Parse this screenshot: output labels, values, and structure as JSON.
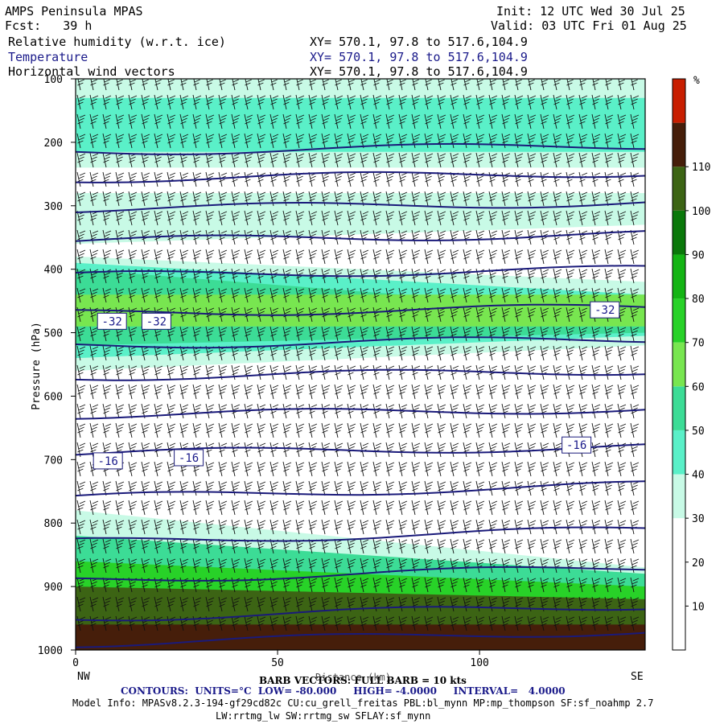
{
  "header": {
    "title": "AMPS Peninsula MPAS",
    "forecast": "Fcst:   39 h",
    "init": "Init: 12 UTC Wed 30 Jul 25",
    "valid": "Valid: 03 UTC Fri 01 Aug 25",
    "fields": [
      {
        "name": "Relative humidity (w.r.t. ice)",
        "xy": "XY= 570.1, 97.8 to 517.6,104.9"
      },
      {
        "name": "Temperature",
        "xy": "XY= 570.1, 97.8 to 517.6,104.9"
      },
      {
        "name": "Horizontal wind vectors",
        "xy": "XY= 570.1, 97.8 to 517.6,104.9"
      }
    ]
  },
  "footer": {
    "nw": "NW",
    "se": "SE",
    "barb_note": "BARB VECTORS: FULL BARB = 10 kts",
    "x_label": "Distance (km)",
    "contours": "CONTOURS:  UNITS=°C  LOW= -80.000     HIGH= -4.0000     INTERVAL=   4.0000",
    "model_info_1": "Model Info: MPASv8.2.3-194-gf29cd82c CU:cu_grell_freitas PBL:bl_mynn MP:mp_thompson SF:sf_noahmp 2.7",
    "model_info_2": "LW:rrtmg_lw SW:rrtmg_sw SFLAY:sf_mynn"
  },
  "chart_data": {
    "type": "heatmap",
    "ylabel": "Pressure (hPa)",
    "xlabel": "Distance (km)",
    "xlim": [
      0,
      141
    ],
    "ylim": [
      1000,
      100
    ],
    "x_ticks": [
      0,
      50,
      100
    ],
    "y_ticks": [
      100,
      200,
      300,
      400,
      500,
      600,
      700,
      800,
      900,
      1000
    ],
    "colorbar": {
      "unit": "%",
      "levels": [
        10,
        20,
        30,
        40,
        50,
        60,
        70,
        80,
        90,
        100,
        110
      ],
      "colors": [
        "#ffffff",
        "#ffffff",
        "#ffffff",
        "#c8fae6",
        "#5af0c8",
        "#3cdc96",
        "#78e650",
        "#28d228",
        "#14b414",
        "#0a780a",
        "#3c6414",
        "#461e0a",
        "#c81e00"
      ]
    },
    "temperature_contours": {
      "units": "°C",
      "low": -80.0,
      "high": -4.0,
      "interval": 4.0,
      "labels": [
        {
          "value": -32,
          "x": 9,
          "p": 482
        },
        {
          "value": -32,
          "x": 20,
          "p": 482
        },
        {
          "value": -32,
          "x": 131,
          "p": 464
        },
        {
          "value": -16,
          "x": 8,
          "p": 702
        },
        {
          "value": -16,
          "x": 28,
          "p": 697
        },
        {
          "value": -16,
          "x": 124,
          "p": 677
        }
      ]
    }
  }
}
